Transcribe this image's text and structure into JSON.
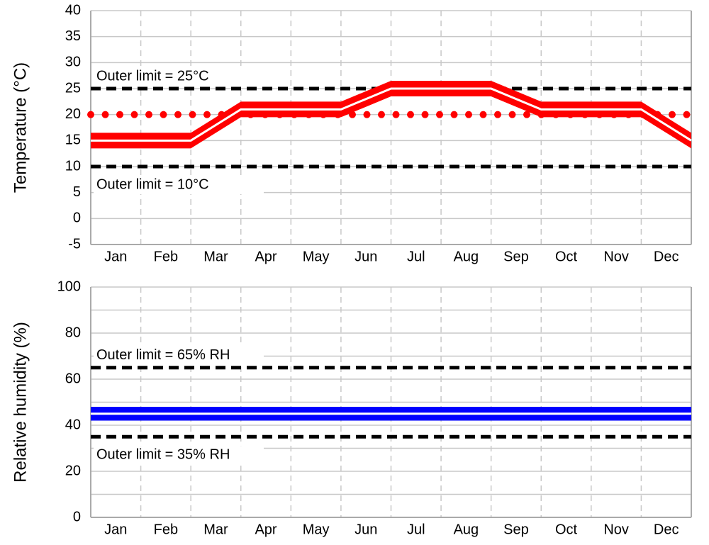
{
  "chart_data": [
    {
      "type": "line",
      "y_label": "Temperature (°C)",
      "categories": [
        "Jan",
        "Feb",
        "Mar",
        "Apr",
        "May",
        "Jun",
        "Jul",
        "Aug",
        "Sep",
        "Oct",
        "Nov",
        "Dec"
      ],
      "xlim": [
        0,
        12
      ],
      "ylim": [
        -5,
        40
      ],
      "yticks": [
        -5,
        0,
        5,
        10,
        15,
        20,
        25,
        30,
        35,
        40
      ],
      "grid": true,
      "series": [
        {
          "color": "#ff0000",
          "line_color": "#ffffff",
          "x": [
            0,
            2,
            3,
            5,
            6,
            8,
            9,
            11,
            12
          ],
          "values": [
            15,
            15,
            21,
            21,
            25,
            25,
            21,
            21,
            15
          ],
          "band_lower": [
            13.5,
            13.5,
            19.5,
            19.5,
            23.5,
            23.5,
            19.5,
            19.5,
            13.5
          ],
          "band_upper": [
            16.5,
            16.5,
            22.5,
            22.5,
            26.5,
            26.5,
            22.5,
            22.5,
            16.5
          ]
        }
      ],
      "reference_lines": [
        {
          "value": 25,
          "label": "Outer limit = 25°C",
          "label_position": "above",
          "style": "dashed",
          "color": "#000000"
        },
        {
          "value": 20,
          "style": "dotted",
          "color": "#ff0000"
        },
        {
          "value": 10,
          "label": "Outer limit = 10°C",
          "label_position": "below",
          "style": "dashed",
          "color": "#000000"
        }
      ]
    },
    {
      "type": "line",
      "y_label": "Relative humidity (%)",
      "categories": [
        "Jan",
        "Feb",
        "Mar",
        "Apr",
        "May",
        "Jun",
        "Jul",
        "Aug",
        "Sep",
        "Oct",
        "Nov",
        "Dec"
      ],
      "xlim": [
        0,
        12
      ],
      "ylim": [
        0,
        100
      ],
      "yticks": [
        0,
        20,
        40,
        60,
        80,
        100
      ],
      "minor_yticks": [
        10,
        30,
        50,
        70,
        90
      ],
      "grid": true,
      "series": [
        {
          "color": "#0000ff",
          "line_color": "#ffffff",
          "x": [
            0,
            12
          ],
          "values": [
            45,
            45
          ],
          "band_lower": [
            42,
            42
          ],
          "band_upper": [
            48,
            48
          ]
        }
      ],
      "reference_lines": [
        {
          "value": 65,
          "label": "Outer limit = 65% RH",
          "label_position": "above",
          "style": "dashed",
          "color": "#000000"
        },
        {
          "value": 35,
          "label": "Outer limit = 35% RH",
          "label_position": "below",
          "style": "dashed",
          "color": "#000000"
        }
      ]
    }
  ]
}
